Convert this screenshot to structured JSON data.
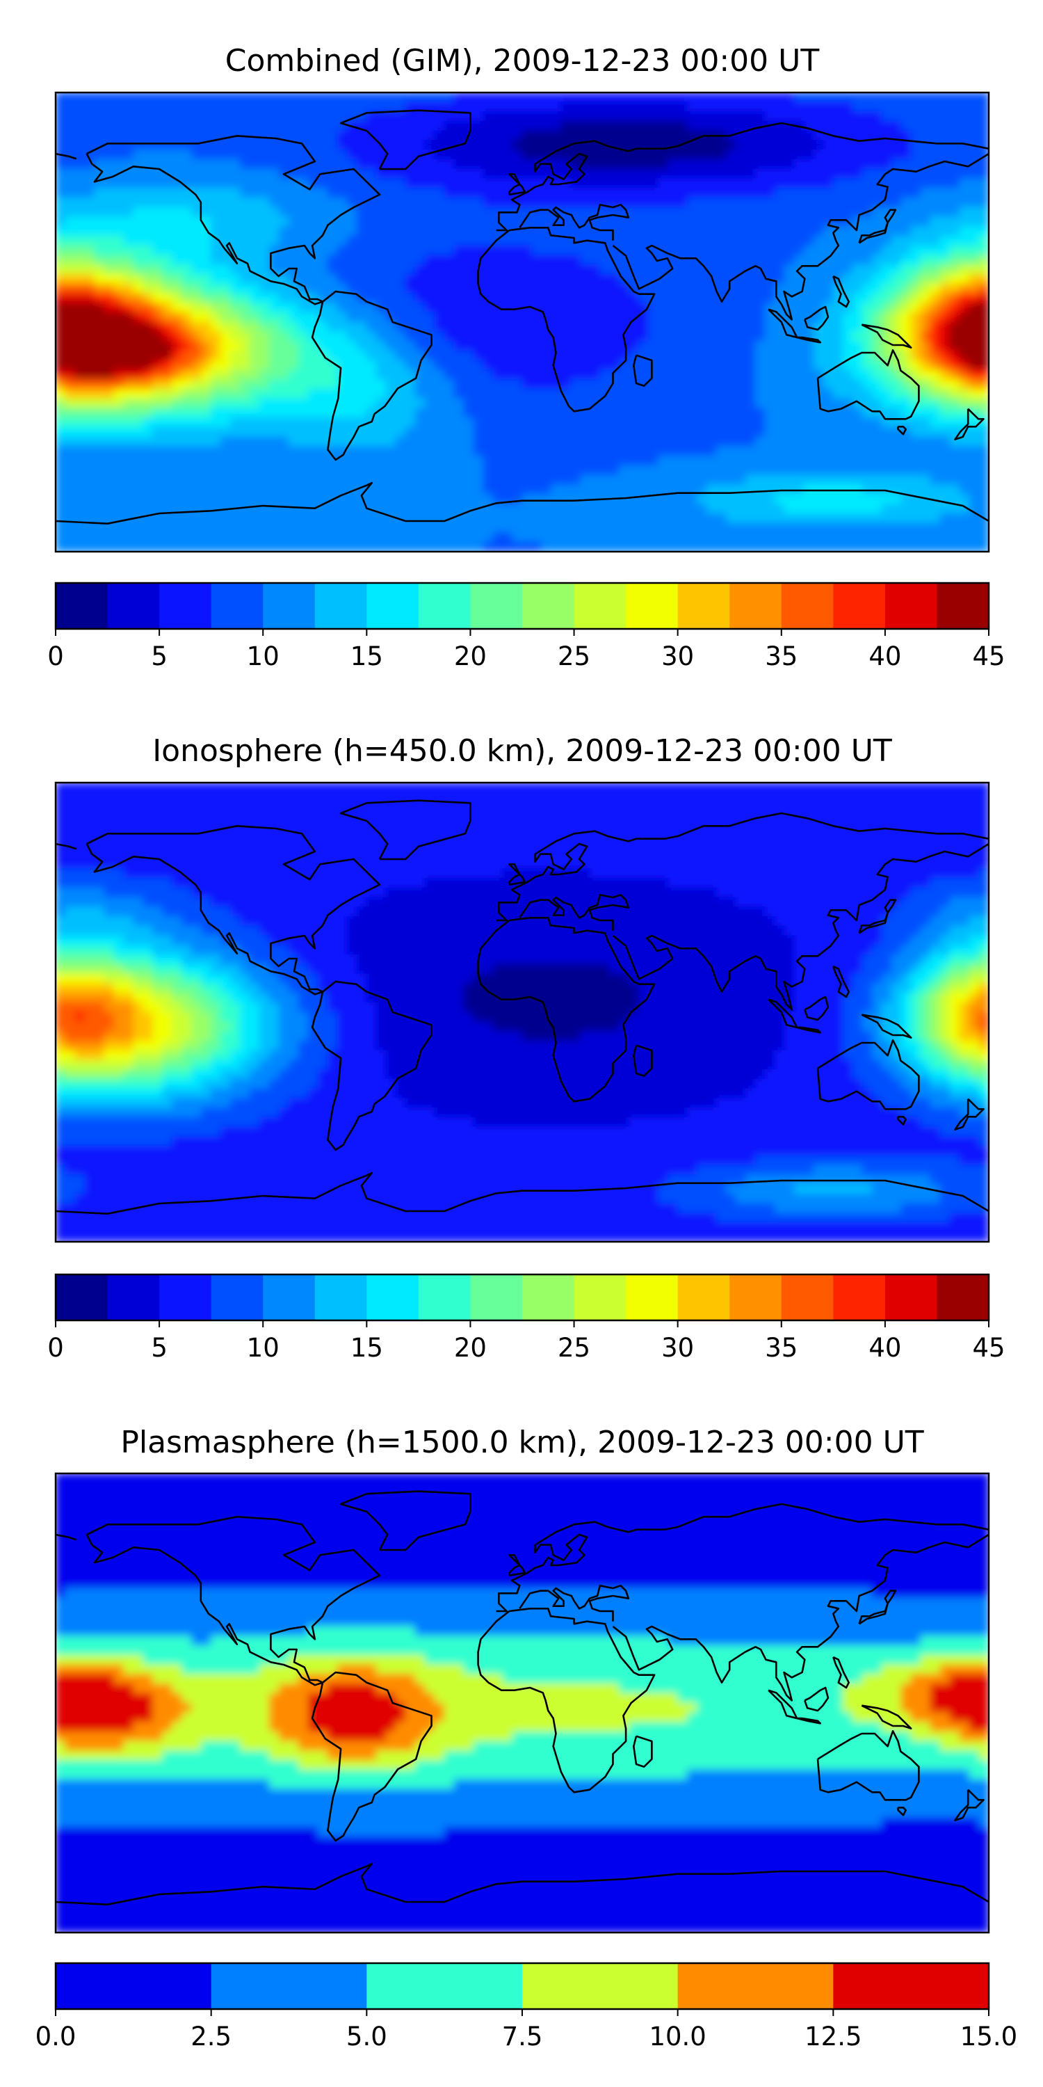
{
  "chart_data": [
    {
      "type": "heatmap",
      "title": "Combined (GIM), 2009-12-23 00:00 UT",
      "colorbar": {
        "levels": [
          0,
          2.5,
          5,
          7.5,
          10,
          12.5,
          15,
          17.5,
          20,
          22.5,
          25,
          27.5,
          30,
          32.5,
          35,
          37.5,
          40,
          42.5,
          45
        ],
        "ticks": [
          0,
          5,
          10,
          15,
          20,
          25,
          30,
          35,
          40,
          45
        ],
        "tick_labels": [
          "0",
          "5",
          "10",
          "15",
          "20",
          "25",
          "30",
          "35",
          "40",
          "45"
        ],
        "colors": [
          "#00008f",
          "#0000d6",
          "#0a14ff",
          "#0050ff",
          "#0088ff",
          "#00bfff",
          "#00eaff",
          "#30ffcf",
          "#66ff99",
          "#99ff66",
          "#ccff30",
          "#f2ff00",
          "#ffc400",
          "#ff9000",
          "#ff5a00",
          "#ff2400",
          "#e00000",
          "#9a0000"
        ]
      },
      "field": {
        "background": 10,
        "features": [
          {
            "lon": -150,
            "lat": -10,
            "amp": 26,
            "slon": 45,
            "slat": 18
          },
          {
            "lon": -155,
            "lat": -12,
            "amp": 8,
            "slon": 18,
            "slat": 7
          },
          {
            "lon": 180,
            "lat": 0,
            "amp": 22,
            "slon": 25,
            "slat": 18
          },
          {
            "lon": -60,
            "lat": -25,
            "amp": 6,
            "slon": 25,
            "slat": 20
          },
          {
            "lon": 40,
            "lat": 70,
            "amp": -9,
            "slon": 70,
            "slat": 14
          },
          {
            "lon": -20,
            "lat": 0,
            "amp": -5,
            "slon": 60,
            "slat": 25
          },
          {
            "lon": 120,
            "lat": -70,
            "amp": 6,
            "slon": 40,
            "slat": 8
          },
          {
            "lon": -130,
            "lat": 40,
            "amp": 5,
            "slon": 40,
            "slat": 12
          }
        ]
      }
    },
    {
      "type": "heatmap",
      "title": "Ionosphere  (h=450.0 km), 2009-12-23 00:00 UT",
      "colorbar": {
        "levels": [
          0,
          2.5,
          5,
          7.5,
          10,
          12.5,
          15,
          17.5,
          20,
          22.5,
          25,
          27.5,
          30,
          32.5,
          35,
          37.5,
          40,
          42.5,
          45
        ],
        "ticks": [
          0,
          5,
          10,
          15,
          20,
          25,
          30,
          35,
          40,
          45
        ],
        "tick_labels": [
          "0",
          "5",
          "10",
          "15",
          "20",
          "25",
          "30",
          "35",
          "40",
          "45"
        ],
        "colors": [
          "#00008f",
          "#0000d6",
          "#0a14ff",
          "#0050ff",
          "#0088ff",
          "#00bfff",
          "#00eaff",
          "#30ffcf",
          "#66ff99",
          "#99ff66",
          "#ccff30",
          "#f2ff00",
          "#ffc400",
          "#ff9000",
          "#ff5a00",
          "#ff2400",
          "#e00000",
          "#9a0000"
        ]
      },
      "field": {
        "background": 6,
        "features": [
          {
            "lon": -150,
            "lat": -5,
            "amp": 22,
            "slon": 40,
            "slat": 20
          },
          {
            "lon": 180,
            "lat": 0,
            "amp": 14,
            "slon": 22,
            "slat": 18
          },
          {
            "lon": 10,
            "lat": 5,
            "amp": -4,
            "slon": 70,
            "slat": 30
          },
          {
            "lon": 120,
            "lat": -70,
            "amp": 7,
            "slon": 40,
            "slat": 8
          },
          {
            "lon": -170,
            "lat": 40,
            "amp": 4,
            "slon": 30,
            "slat": 10
          }
        ]
      }
    },
    {
      "type": "heatmap",
      "title": "Plasmasphere (h=1500.0 km), 2009-12-23 00:00 UT",
      "colorbar": {
        "levels": [
          0,
          2.5,
          5,
          7.5,
          10,
          12.5,
          15
        ],
        "ticks": [
          0,
          2.5,
          5,
          7.5,
          10,
          12.5,
          15
        ],
        "tick_labels": [
          "0.0",
          "2.5",
          "5.0",
          "7.5",
          "10.0",
          "12.5",
          "15.0"
        ],
        "colors": [
          "#0000ee",
          "#0080ff",
          "#30ffcf",
          "#ccff30",
          "#ff8c00",
          "#e00000"
        ]
      },
      "field": {
        "background": 1.5,
        "features": [
          {
            "lon": -20,
            "lat": -2,
            "amp": 6.5,
            "slon": 220,
            "slat": 25
          },
          {
            "lon": -65,
            "lat": -5,
            "amp": 7,
            "slon": 22,
            "slat": 15
          },
          {
            "lon": -165,
            "lat": -5,
            "amp": 6.5,
            "slon": 25,
            "slat": 12
          },
          {
            "lon": 175,
            "lat": 5,
            "amp": 6.5,
            "slon": 25,
            "slat": 10
          }
        ]
      }
    }
  ],
  "map_style": {
    "coastline_color": "#000000",
    "frame_color": "#000000"
  }
}
